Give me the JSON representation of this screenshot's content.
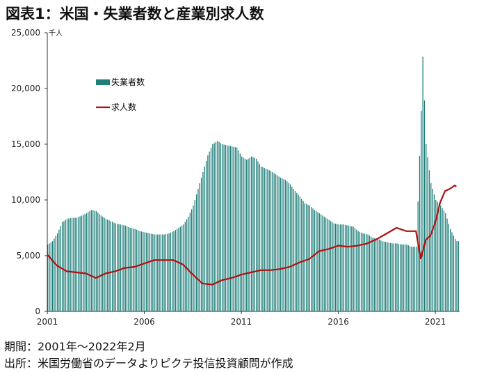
{
  "title": "図表1：米国・失業者数と産業別求人数",
  "footer": {
    "period": "期間：2001年～2022年2月",
    "source": "出所：米国労働省のデータよりピクテ投信投資顧問が作成"
  },
  "colors": {
    "bars": "#1f7f7a",
    "line": "#b01010",
    "axis": "#333333"
  },
  "chart_data": {
    "type": "bar",
    "unit": "千人",
    "ylim": [
      0,
      25000
    ],
    "yticks": [
      0,
      5000,
      10000,
      15000,
      20000,
      25000
    ],
    "ytick_labels": [
      "0",
      "5,000",
      "10,000",
      "15,000",
      "20,000",
      "25,000"
    ],
    "xlim": [
      2001.0,
      2022.25
    ],
    "xticks": [
      2001,
      2006,
      2011,
      2016,
      2021
    ],
    "xtick_labels": [
      "2001",
      "2006",
      "2011",
      "2016",
      "2021"
    ],
    "legend_position": "upper-left",
    "series": [
      {
        "name": "失業者数",
        "type": "bar",
        "x": [
          2001.0,
          2001.25,
          2001.5,
          2001.75,
          2002.0,
          2002.25,
          2002.5,
          2002.75,
          2003.0,
          2003.25,
          2003.5,
          2003.75,
          2004.0,
          2004.25,
          2004.5,
          2004.75,
          2005.0,
          2005.25,
          2005.5,
          2005.75,
          2006.0,
          2006.25,
          2006.5,
          2006.75,
          2007.0,
          2007.25,
          2007.5,
          2007.75,
          2008.0,
          2008.25,
          2008.5,
          2008.75,
          2009.0,
          2009.25,
          2009.5,
          2009.75,
          2010.0,
          2010.25,
          2010.5,
          2010.75,
          2011.0,
          2011.25,
          2011.5,
          2011.75,
          2012.0,
          2012.25,
          2012.5,
          2012.75,
          2013.0,
          2013.25,
          2013.5,
          2013.75,
          2014.0,
          2014.25,
          2014.5,
          2014.75,
          2015.0,
          2015.25,
          2015.5,
          2015.75,
          2016.0,
          2016.25,
          2016.5,
          2016.75,
          2017.0,
          2017.25,
          2017.5,
          2017.75,
          2018.0,
          2018.25,
          2018.5,
          2018.75,
          2019.0,
          2019.25,
          2019.5,
          2019.75,
          2020.0,
          2020.25,
          2020.33,
          2020.5,
          2020.75,
          2021.0,
          2021.25,
          2021.5,
          2021.75,
          2022.0,
          2022.08
        ],
        "values": [
          6000,
          6300,
          7000,
          8000,
          8300,
          8400,
          8400,
          8600,
          8800,
          9100,
          9000,
          8600,
          8300,
          8100,
          7900,
          7800,
          7700,
          7500,
          7400,
          7200,
          7100,
          7000,
          6900,
          6900,
          6900,
          7000,
          7200,
          7500,
          7800,
          8500,
          9500,
          11000,
          12500,
          14000,
          15000,
          15300,
          15000,
          14900,
          14800,
          14700,
          13900,
          13600,
          13900,
          13700,
          13000,
          12800,
          12600,
          12300,
          12000,
          11800,
          11400,
          10800,
          10300,
          9700,
          9500,
          9100,
          8800,
          8500,
          8200,
          7900,
          7800,
          7800,
          7700,
          7600,
          7200,
          7000,
          6900,
          6600,
          6500,
          6300,
          6200,
          6100,
          6100,
          6000,
          6000,
          5800,
          5800,
          18000,
          23000,
          15000,
          11500,
          10000,
          9500,
          8800,
          7400,
          6500,
          6300
        ]
      },
      {
        "name": "求人数",
        "type": "line",
        "x": [
          2001.0,
          2001.5,
          2002.0,
          2002.5,
          2003.0,
          2003.5,
          2004.0,
          2004.5,
          2005.0,
          2005.5,
          2006.0,
          2006.5,
          2007.0,
          2007.5,
          2008.0,
          2008.5,
          2009.0,
          2009.5,
          2010.0,
          2010.5,
          2011.0,
          2011.5,
          2012.0,
          2012.5,
          2013.0,
          2013.5,
          2014.0,
          2014.5,
          2015.0,
          2015.5,
          2016.0,
          2016.5,
          2017.0,
          2017.5,
          2018.0,
          2018.5,
          2019.0,
          2019.5,
          2020.0,
          2020.25,
          2020.5,
          2020.75,
          2021.0,
          2021.25,
          2021.5,
          2021.75,
          2022.0,
          2022.08
        ],
        "values": [
          5100,
          4100,
          3600,
          3500,
          3400,
          3000,
          3400,
          3600,
          3900,
          4000,
          4300,
          4600,
          4600,
          4600,
          4200,
          3300,
          2500,
          2400,
          2800,
          3000,
          3300,
          3500,
          3700,
          3700,
          3800,
          4000,
          4400,
          4700,
          5400,
          5600,
          5900,
          5800,
          5900,
          6100,
          6500,
          7000,
          7500,
          7200,
          7200,
          4700,
          6400,
          6800,
          8000,
          9800,
          10800,
          11000,
          11300,
          11200
        ]
      }
    ]
  }
}
